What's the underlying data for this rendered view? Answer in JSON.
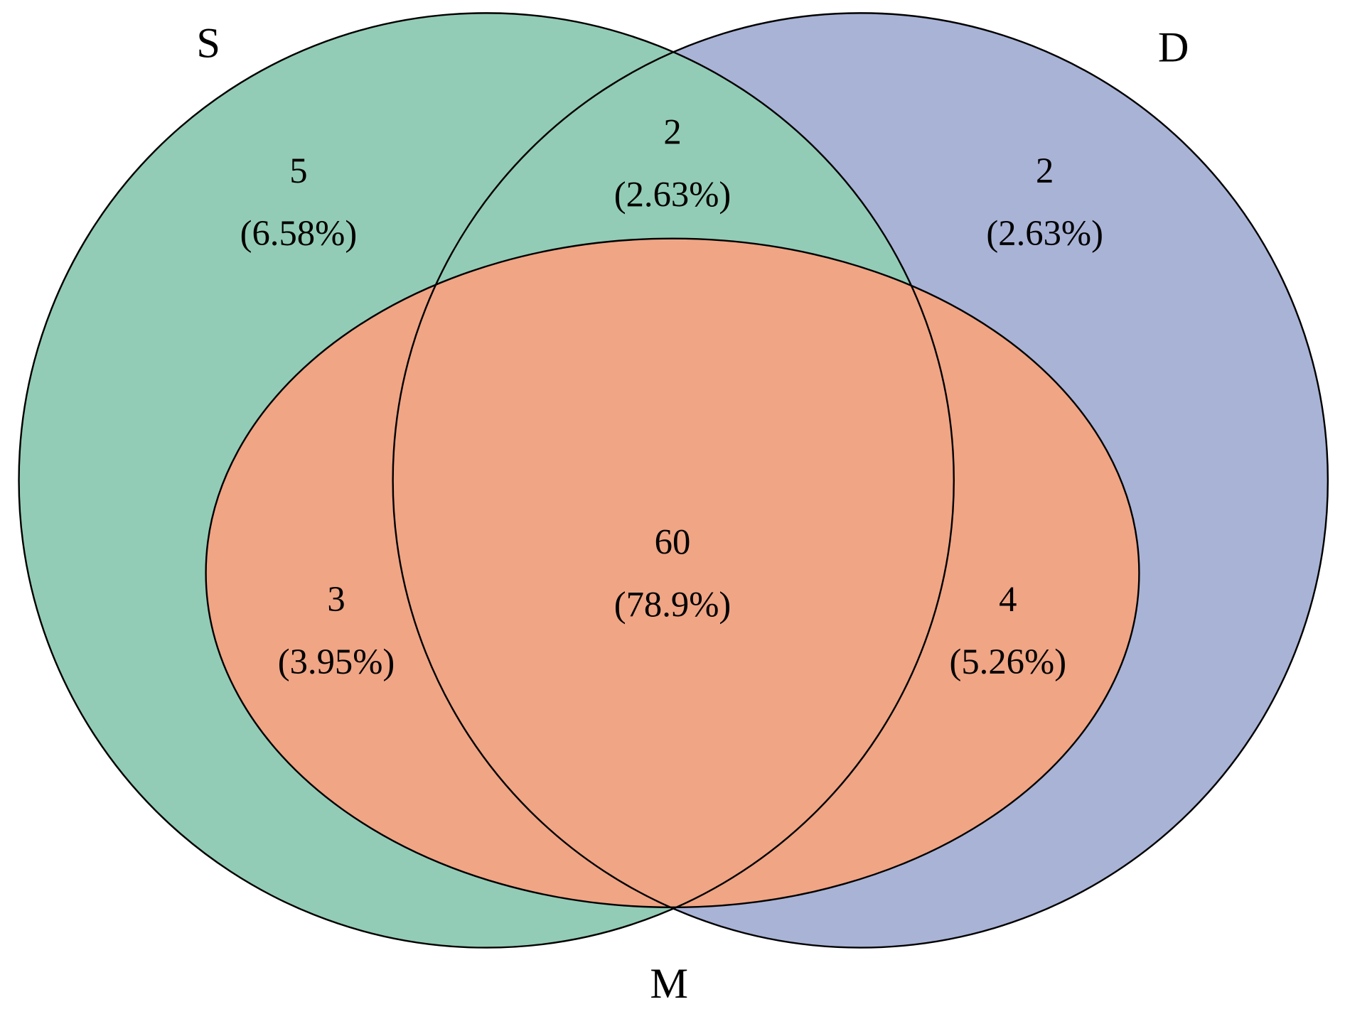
{
  "chart_data": {
    "type": "venn",
    "sets": [
      {
        "name": "S",
        "color": "#93ccb6"
      },
      {
        "name": "D",
        "color": "#a9b3d6"
      },
      {
        "name": "M",
        "color": "#f0a585"
      }
    ],
    "regions": [
      "S",
      "S&D",
      "D",
      "S&M",
      "S&D&M",
      "D&M"
    ],
    "values": [
      5,
      2,
      2,
      3,
      60,
      4
    ],
    "percents": [
      6.58,
      2.63,
      2.63,
      3.95,
      78.9,
      5.26
    ],
    "percent_labels": [
      "(6.58%)",
      "(2.63%)",
      "(2.63%)",
      "(3.95%)",
      "(78.9%)",
      "(5.26%)"
    ]
  }
}
